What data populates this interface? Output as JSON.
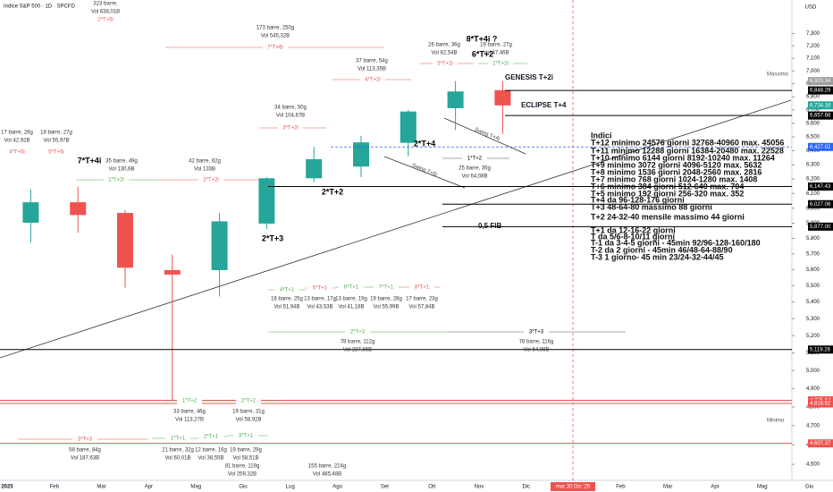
{
  "header": {
    "title": "Indice S&P 500 · 1D · SPCFD",
    "currency": "USD"
  },
  "chart_data": {
    "type": "candlestick",
    "log_scale": true,
    "up_color": "#26a69a",
    "down_color": "#ef5350",
    "categories": [
      "2025",
      "Feb",
      "Mar",
      "Apr",
      "Mag",
      "Giu",
      "Lug",
      "Ago",
      "Set",
      "Ott",
      "Nov",
      "Dic",
      null,
      "Feb",
      "Mar",
      "Apr",
      "Mag",
      "Giu"
    ],
    "open": [
      5903,
      6040,
      5968,
      5597,
      5597,
      5897,
      6205,
      6287,
      6457,
      6713,
      6850,
      null,
      null,
      null,
      null,
      null,
      null,
      null
    ],
    "high": [
      6128,
      6147,
      5986,
      5695,
      5968,
      6215,
      6427,
      6508,
      6699,
      6920,
      6920,
      null,
      null,
      null,
      null,
      null,
      null,
      null
    ],
    "low": [
      5773,
      5837,
      5488,
      4835,
      5434,
      5861,
      6177,
      6212,
      6360,
      6550,
      6521,
      null,
      null,
      null,
      null,
      null,
      null,
      null
    ],
    "close": [
      6040,
      5954,
      5612,
      5569,
      5912,
      6205,
      6339,
      6460,
      6688,
      6840,
      6734,
      null,
      null,
      null,
      null,
      null,
      null,
      null
    ],
    "ylim": [
      4420,
      7580
    ],
    "yticks": [
      {
        "value": 4500,
        "label": "4,500"
      },
      {
        "value": 4600,
        "label": "4,600"
      },
      {
        "value": 4700,
        "label": "4,700"
      },
      {
        "value": 4800,
        "label": "4,800"
      },
      {
        "value": 4900,
        "label": "4,900"
      },
      {
        "value": 5000,
        "label": "5,000"
      },
      {
        "value": 5100,
        "label": "5,100"
      },
      {
        "value": 5200,
        "label": "5,200"
      },
      {
        "value": 5300,
        "label": "5,300"
      },
      {
        "value": 5400,
        "label": "5,400"
      },
      {
        "value": 5500,
        "label": "5,500"
      },
      {
        "value": 5600,
        "label": "5,600"
      },
      {
        "value": 5700,
        "label": "5,700"
      },
      {
        "value": 5800,
        "label": "5,800"
      },
      {
        "value": 5900,
        "label": "5,900"
      },
      {
        "value": 6000,
        "label": "6,000"
      },
      {
        "value": 6100,
        "label": "6,100"
      },
      {
        "value": 6200,
        "label": "6,200"
      },
      {
        "value": 6300,
        "label": "6,300"
      },
      {
        "value": 6400,
        "label": "6,400"
      },
      {
        "value": 6500,
        "label": "6,500"
      },
      {
        "value": 6600,
        "label": "6,600"
      },
      {
        "value": 6700,
        "label": "6,700"
      },
      {
        "value": 6800,
        "label": "6,800"
      },
      {
        "value": 6900,
        "label": "6,900"
      },
      {
        "value": 7000,
        "label": "7,000"
      },
      {
        "value": 7100,
        "label": "7,100"
      },
      {
        "value": 7200,
        "label": "7,200"
      },
      {
        "value": 7300,
        "label": "7,300"
      }
    ],
    "levels": [
      {
        "value": 6920.34,
        "label": "6,920.34",
        "color": "#9e9e9e",
        "name": "Massimo"
      },
      {
        "value": 6848.29,
        "label": "6,848.29",
        "color": "#000000",
        "name": "GENESIS T+2i"
      },
      {
        "value": 6734.16,
        "label": "6,734.16",
        "color": "#26a69a"
      },
      {
        "value": 6657.68,
        "label": "6,657.68",
        "color": "#000000",
        "name": "ECLIPSE T+4"
      },
      {
        "value": 6427.02,
        "label": "6,427.02",
        "color": "#2962ff"
      },
      {
        "value": 6147.43,
        "label": "6,147.43",
        "color": "#000000"
      },
      {
        "value": 6027.06,
        "label": "6,027.06",
        "color": "#000000"
      },
      {
        "value": 5877,
        "label": "5,877.00",
        "color": "#000000",
        "name": "0,5 FIB"
      },
      {
        "value": 5119.26,
        "label": "5,119.26",
        "color": "#000000"
      },
      {
        "value": 4835.64,
        "label": "4,835.64",
        "color": "#ef5350",
        "name": "Minimo"
      },
      {
        "value": 4818.62,
        "label": "4,818.62",
        "color": "#ef5350"
      },
      {
        "value": 4607.37,
        "label": "4,607.37",
        "color": "#ef5350"
      }
    ],
    "marker_date": "mar 30 Dic '25",
    "annotations": [
      {
        "label": "2*T+5i",
        "color": "#ef5350",
        "detail": [
          "323 barre,",
          "Vol 638,01B"
        ]
      },
      {
        "label": "7*T+6i",
        "color": "#ef5350",
        "detail": [
          "173 barre, 250g",
          "Vol 545,32B"
        ]
      },
      {
        "label": "4*T+2i",
        "color": "#ef5350",
        "detail": [
          "37 barre, 54g",
          "Vol 113,35B"
        ]
      },
      {
        "label": "3*T+2i",
        "color": "#ef5350",
        "detail": [
          "34 barre, 50g",
          "Vol 104,67B"
        ]
      },
      {
        "label": "5*T+2i",
        "color": "#ef5350",
        "detail": [
          "26 barre, 36g",
          "Vol 82,54B"
        ]
      },
      {
        "label": "1*T+2i",
        "color": "#4caf50",
        "detail": [
          "19 barre, 27g",
          "Vol 47,46B"
        ]
      },
      {
        "label": "8*T+4i ?",
        "color": "#000000",
        "detail": []
      },
      {
        "label": "6*T+2",
        "color": "#000000",
        "detail": []
      },
      {
        "label": "7*T+4i",
        "color": "#000000",
        "detail": []
      },
      {
        "label": "1*T+2i",
        "color": "#4caf50",
        "detail": [
          "35 barre, 49g",
          "Vol 130,6B"
        ]
      },
      {
        "label": "2*T+2i",
        "color": "#ef5350",
        "detail": [
          "42 barre, 62g",
          "Vol 133B"
        ]
      },
      {
        "label": "4*T+5i",
        "color": "#ef5350",
        "detail": [
          "17 barre, 28g",
          "Vol 42,92B"
        ]
      },
      {
        "label": "5*T+5i",
        "color": "#ef5350",
        "detail": [
          "18 barre, 27g",
          "Vol 55,97B"
        ]
      },
      {
        "label": "1*T+2",
        "color": "#000000",
        "detail": [
          "25 barre, 35g",
          "Vol 64,08B"
        ]
      },
      {
        "label": "2*T+3",
        "color": "#4caf50",
        "detail": [
          "78 barre, 112g",
          "Vol 237,86B"
        ]
      },
      {
        "label": "3*T+3",
        "color": "#000000",
        "detail": [
          "78 barre, 116g",
          "Vol 64,08B"
        ]
      },
      {
        "label": "4*T+1",
        "color": "#4caf50",
        "detail": [
          "16 barre, 25g",
          "Vol 51,94B"
        ]
      },
      {
        "label": "5*T+1",
        "color": "#ef5350",
        "detail": [
          "13 barre, 17g",
          "Vol 43,53B"
        ]
      },
      {
        "label": "6*T+1",
        "color": "#4caf50",
        "detail": [
          "13 barre, 19g",
          "Vol 41,18B"
        ]
      },
      {
        "label": "7*T+1",
        "color": "#4caf50",
        "detail": [
          "19 barre, 28g",
          "Vol 55,99B"
        ]
      },
      {
        "label": "8*T+1",
        "color": "#ef5350",
        "detail": [
          "17 barre, 23g",
          "Vol 57,84B"
        ]
      },
      {
        "label": "1*T+2",
        "color": "#4caf50",
        "detail": [
          "33 barre, 46g",
          "Vol 113,27B"
        ]
      },
      {
        "label": "2*T+2",
        "color": "#4caf50",
        "detail": [
          "19 barre, 31g",
          "Vol 58,92B"
        ]
      },
      {
        "label": "3*T+3",
        "color": "#ef5350",
        "detail": [
          "58 barre, 84g",
          "Vol 187,63B"
        ]
      },
      {
        "label": "1*T+1",
        "color": "#4caf50",
        "detail": [
          "21 barre, 32g",
          "Vol 60,01B"
        ]
      },
      {
        "label": "2*T+1",
        "color": "#4caf50",
        "detail": [
          "12 barre, 16g",
          "Vol 38,55B"
        ]
      },
      {
        "label": "3*T+1",
        "color": "#4caf50",
        "detail": [
          "19 barre, 29g",
          "Vol 58,51B"
        ]
      },
      {
        "label": "2*T+4",
        "color": "#000000",
        "detail": []
      },
      {
        "label": "2*T+2",
        "color": "#000000",
        "detail": []
      },
      {
        "label": "2*T+3",
        "color": "#000000",
        "detail": []
      },
      {
        "label": "Swing T+4i",
        "color": "#424242",
        "detail": []
      },
      {
        "label": "Swing T+5i",
        "color": "#424242",
        "detail": []
      },
      {
        "label": "",
        "color": "#000000",
        "detail": [
          "81 barre, 119g",
          "Vol 259,32B"
        ]
      },
      {
        "label": "",
        "color": "#000000",
        "detail": [
          "155 barre, 224g",
          "Vol 485,48B"
        ]
      }
    ],
    "notes": [
      "Indici",
      "T+12 minimo 24576 giorni 32768-40960 max. 45056",
      "T+11 minimo 12288 giorni 16384-20480 max. 22528",
      "T+10 minimo 6144 giorni 8192-10240 max. 11264",
      "T+9 minimo 3072 giorni 4096-5120 max. 5632",
      "T+8 minimo 1536 giorni 2048-2560 max. 2816",
      "T+7 minimo 768 giorni 1024-1280 max. 1408",
      "T+6 minimo 384 giorni 512-640 max. 704",
      "T+5 minimo 192 giorni 256-320 max. 352",
      "T+4 da 96-128-176 giorni",
      "T+3 48-64-80 massimo 88 giorni",
      "T+2 24-32-40 mensile massimo 44 giorni",
      "T+1 da 12-16-22 giorni",
      "T da 5/6-8-10/11 giorni",
      "T-1 da 3-4-5 giorni - 45min 92/96-128-160/180",
      "T-2 da 2 giorni - 45min 46/48-64-88/90",
      "T-3 1 giorno- 45 min 23/24-32-44/45"
    ]
  }
}
